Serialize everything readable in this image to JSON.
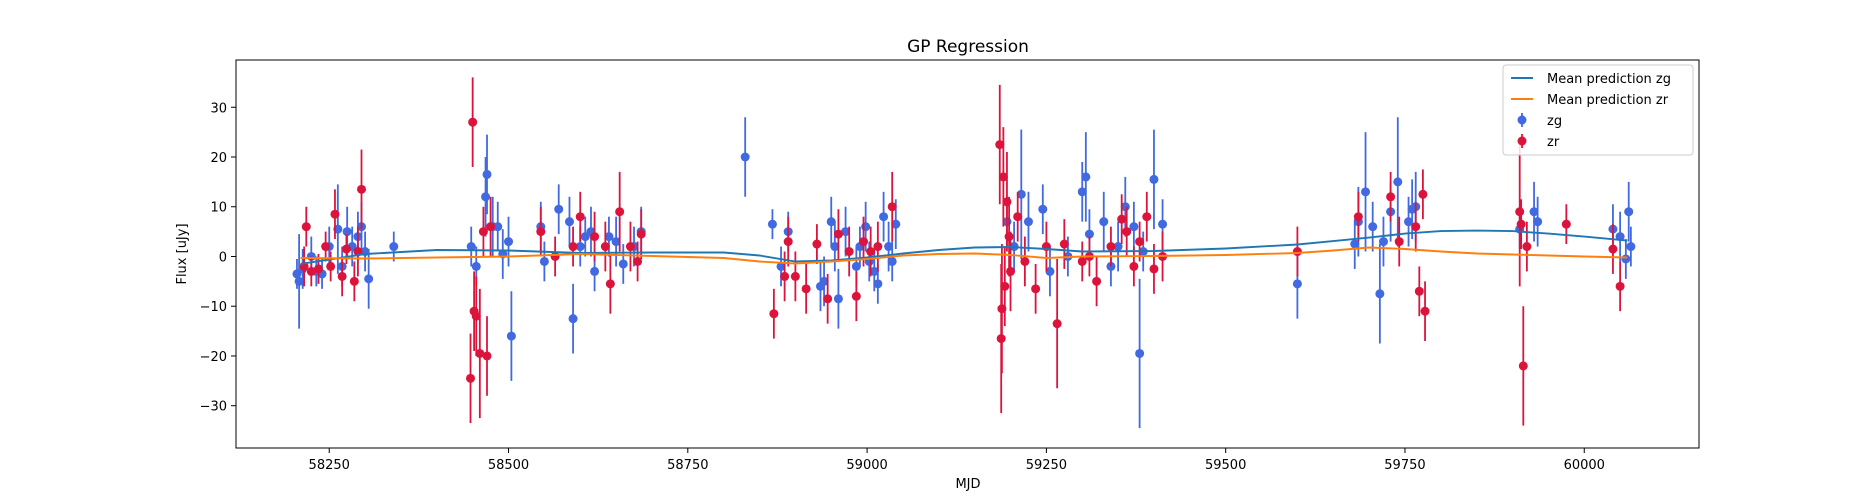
{
  "chart_data": {
    "type": "scatter",
    "title": "GP Regression",
    "xlabel": "MJD",
    "ylabel": "Flux [uJy]",
    "xlim": [
      58120,
      60160
    ],
    "ylim": [
      -38.5,
      39.5
    ],
    "xticks": [
      58250,
      58500,
      58750,
      59000,
      59250,
      59500,
      59750,
      60000
    ],
    "yticks": [
      -30,
      -20,
      -10,
      0,
      10,
      20,
      30
    ],
    "legend_position": "top-right",
    "grid": false,
    "series": [
      {
        "name": "Mean prediction zg",
        "kind": "line",
        "color": "#1f77b4",
        "x": [
          58210,
          58300,
          58400,
          58500,
          58600,
          58700,
          58800,
          58850,
          58900,
          58950,
          59000,
          59050,
          59100,
          59150,
          59200,
          59250,
          59300,
          59400,
          59500,
          59600,
          59650,
          59700,
          59750,
          59800,
          59850,
          59900,
          59950,
          60000,
          60060
        ],
        "y": [
          -1.5,
          0.5,
          1.3,
          1.2,
          0.7,
          0.8,
          0.8,
          0.2,
          -1.0,
          -0.8,
          -0.2,
          0.6,
          1.3,
          1.8,
          1.9,
          1.5,
          1.0,
          1.1,
          1.6,
          2.4,
          3.1,
          3.8,
          4.6,
          5.1,
          5.2,
          5.1,
          4.6,
          4.0,
          3.2
        ]
      },
      {
        "name": "Mean prediction zr",
        "kind": "line",
        "color": "#ff7f0e",
        "x": [
          58210,
          58300,
          58400,
          58500,
          58600,
          58700,
          58800,
          58850,
          58900,
          58950,
          59000,
          59050,
          59100,
          59150,
          59200,
          59250,
          59300,
          59400,
          59500,
          59600,
          59650,
          59700,
          59750,
          59800,
          59850,
          59900,
          59950,
          60000,
          60060
        ],
        "y": [
          -0.3,
          -0.4,
          -0.2,
          0.0,
          0.5,
          0.1,
          -0.3,
          -1.0,
          -1.4,
          -1.0,
          -0.5,
          0.2,
          0.5,
          0.6,
          0.3,
          -0.3,
          0.0,
          0.1,
          0.3,
          0.7,
          1.2,
          1.8,
          1.5,
          1.0,
          0.6,
          0.4,
          0.2,
          0.0,
          -0.2
        ]
      },
      {
        "name": "zg",
        "kind": "errorbar",
        "color": "#4169e1",
        "points": [
          [
            58205,
            -3.5,
            3
          ],
          [
            58208,
            -5,
            9.5
          ],
          [
            58213,
            -2.5,
            4
          ],
          [
            58225,
            0,
            4
          ],
          [
            58232,
            -3,
            3
          ],
          [
            58240,
            -3.5,
            3
          ],
          [
            58250,
            2,
            4
          ],
          [
            58262,
            5.5,
            9
          ],
          [
            58268,
            -2,
            4
          ],
          [
            58275,
            5,
            5
          ],
          [
            58282,
            2,
            4
          ],
          [
            58290,
            4,
            5
          ],
          [
            58295,
            6,
            5
          ],
          [
            58300,
            1,
            4
          ],
          [
            58305,
            -4.5,
            6
          ],
          [
            58340,
            2,
            3
          ],
          [
            58448,
            2,
            4
          ],
          [
            58455,
            -2,
            4
          ],
          [
            58468,
            12,
            8
          ],
          [
            58470,
            16.5,
            8
          ],
          [
            58478,
            6,
            6
          ],
          [
            58485,
            6,
            5
          ],
          [
            58492,
            0.5,
            5
          ],
          [
            58500,
            3,
            5
          ],
          [
            58504,
            -16,
            9
          ],
          [
            58545,
            6,
            5
          ],
          [
            58550,
            -1,
            4
          ],
          [
            58570,
            9.5,
            5
          ],
          [
            58585,
            7,
            5
          ],
          [
            58590,
            -12.5,
            7
          ],
          [
            58600,
            2,
            4
          ],
          [
            58607,
            4,
            4
          ],
          [
            58615,
            5,
            5
          ],
          [
            58620,
            -3,
            4
          ],
          [
            58640,
            4,
            4
          ],
          [
            58650,
            3,
            5
          ],
          [
            58660,
            -1.5,
            4
          ],
          [
            58675,
            2,
            4
          ],
          [
            58685,
            5,
            5
          ],
          [
            58830,
            20,
            8
          ],
          [
            58868,
            6.5,
            3
          ],
          [
            58880,
            -2,
            4
          ],
          [
            58890,
            5,
            4
          ],
          [
            58935,
            -6,
            5
          ],
          [
            58940,
            -5,
            5
          ],
          [
            58950,
            7,
            5
          ],
          [
            58955,
            2,
            5
          ],
          [
            58960,
            -8.5,
            6
          ],
          [
            58970,
            5,
            5
          ],
          [
            58985,
            -2,
            4
          ],
          [
            58990,
            2,
            4
          ],
          [
            58998,
            6,
            5
          ],
          [
            59003,
            -1,
            4
          ],
          [
            59010,
            -3,
            4
          ],
          [
            59015,
            -5.5,
            4
          ],
          [
            59023,
            8,
            5
          ],
          [
            59030,
            2,
            5
          ],
          [
            59035,
            -1,
            4
          ],
          [
            59040,
            6.5,
            5
          ],
          [
            59195,
            7,
            5
          ],
          [
            59205,
            2,
            5
          ],
          [
            59215,
            12.5,
            13
          ],
          [
            59225,
            7,
            6
          ],
          [
            59245,
            9.5,
            5
          ],
          [
            59255,
            -3,
            5
          ],
          [
            59280,
            0,
            4
          ],
          [
            59300,
            13,
            6
          ],
          [
            59305,
            16,
            9
          ],
          [
            59310,
            4.5,
            5
          ],
          [
            59330,
            7,
            6
          ],
          [
            59340,
            -2,
            4
          ],
          [
            59350,
            2,
            5
          ],
          [
            59360,
            10,
            6
          ],
          [
            59372,
            6,
            5
          ],
          [
            59380,
            -19.5,
            15
          ],
          [
            59385,
            1,
            4
          ],
          [
            59400,
            15.5,
            10
          ],
          [
            59412,
            6.5,
            5
          ],
          [
            59600,
            -5.5,
            7
          ],
          [
            59680,
            2.5,
            5
          ],
          [
            59685,
            7,
            7
          ],
          [
            59695,
            13,
            12
          ],
          [
            59705,
            6,
            5
          ],
          [
            59715,
            -7.5,
            10
          ],
          [
            59720,
            3,
            5
          ],
          [
            59730,
            9,
            6
          ],
          [
            59740,
            15,
            13
          ],
          [
            59755,
            7,
            5
          ],
          [
            59760,
            9.5,
            6
          ],
          [
            59765,
            10,
            7
          ],
          [
            59910,
            5.5,
            4
          ],
          [
            59930,
            9,
            6
          ],
          [
            59935,
            7,
            5
          ],
          [
            60040,
            5.5,
            5
          ],
          [
            60050,
            4,
            5
          ],
          [
            60058,
            -0.5,
            4
          ],
          [
            60062,
            9,
            6
          ],
          [
            60065,
            2,
            4
          ]
        ]
      },
      {
        "name": "zr",
        "kind": "errorbar",
        "color": "#dc143c",
        "points": [
          [
            58215,
            -2,
            4
          ],
          [
            58218,
            6,
            4
          ],
          [
            58225,
            -3,
            3
          ],
          [
            58235,
            -2.5,
            3
          ],
          [
            58245,
            2,
            3
          ],
          [
            58252,
            -2,
            3
          ],
          [
            58258,
            8.5,
            5
          ],
          [
            58268,
            -4,
            4
          ],
          [
            58274,
            1.5,
            3
          ],
          [
            58285,
            -5,
            4
          ],
          [
            58290,
            1,
            5
          ],
          [
            58295,
            13.5,
            8
          ],
          [
            58450,
            27,
            9
          ],
          [
            58452,
            -11,
            8
          ],
          [
            58455,
            -12,
            8
          ],
          [
            58447,
            -24.5,
            9
          ],
          [
            58460,
            -19.5,
            13
          ],
          [
            58465,
            5,
            5
          ],
          [
            58470,
            -20,
            8
          ],
          [
            58475,
            6,
            6
          ],
          [
            58545,
            5,
            5
          ],
          [
            58565,
            0,
            4
          ],
          [
            58590,
            2,
            4
          ],
          [
            58600,
            8,
            5
          ],
          [
            58620,
            4,
            5
          ],
          [
            58635,
            2,
            5
          ],
          [
            58642,
            -5.5,
            6
          ],
          [
            58655,
            9,
            8
          ],
          [
            58670,
            2,
            5
          ],
          [
            58680,
            -1,
            4
          ],
          [
            58685,
            4.5,
            5
          ],
          [
            58870,
            -11.5,
            5
          ],
          [
            58885,
            -4,
            5
          ],
          [
            58890,
            3,
            5
          ],
          [
            58900,
            -4,
            5
          ],
          [
            58915,
            -6.5,
            5
          ],
          [
            58930,
            2.5,
            4
          ],
          [
            58945,
            -8.5,
            5
          ],
          [
            58960,
            4.5,
            5
          ],
          [
            58975,
            1,
            5
          ],
          [
            58985,
            -8,
            5
          ],
          [
            58995,
            3,
            5
          ],
          [
            59005,
            1,
            5
          ],
          [
            59015,
            2,
            5
          ],
          [
            59035,
            10,
            7
          ],
          [
            59185,
            22.5,
            12
          ],
          [
            59187,
            -16.5,
            15
          ],
          [
            59188,
            -10.5,
            13
          ],
          [
            59190,
            16,
            10
          ],
          [
            59192,
            -6,
            8
          ],
          [
            59195,
            11,
            10
          ],
          [
            59198,
            4,
            8
          ],
          [
            59200,
            -3,
            8
          ],
          [
            59210,
            8,
            5
          ],
          [
            59220,
            -1,
            5
          ],
          [
            59235,
            -6.5,
            5
          ],
          [
            59250,
            2,
            5
          ],
          [
            59265,
            -13.5,
            13
          ],
          [
            59275,
            2.5,
            5
          ],
          [
            59300,
            -1,
            4
          ],
          [
            59310,
            0,
            4
          ],
          [
            59320,
            -5,
            5
          ],
          [
            59340,
            2,
            4
          ],
          [
            59355,
            7.5,
            5
          ],
          [
            59362,
            5,
            5
          ],
          [
            59372,
            -2,
            4
          ],
          [
            59380,
            3,
            4
          ],
          [
            59390,
            8,
            5
          ],
          [
            59400,
            -2.5,
            5
          ],
          [
            59412,
            0,
            5
          ],
          [
            59600,
            1,
            5
          ],
          [
            59685,
            8,
            5
          ],
          [
            59730,
            12,
            5
          ],
          [
            59742,
            3,
            5
          ],
          [
            59765,
            6,
            5
          ],
          [
            59770,
            -7,
            5
          ],
          [
            59775,
            12.5,
            5
          ],
          [
            59778,
            -11,
            6
          ],
          [
            59910,
            9,
            15
          ],
          [
            59915,
            -22,
            12
          ],
          [
            59912,
            6.5,
            5
          ],
          [
            59920,
            2,
            5
          ],
          [
            59975,
            6.5,
            4
          ],
          [
            60040,
            1.5,
            5
          ],
          [
            60050,
            -6,
            5
          ]
        ]
      }
    ]
  }
}
